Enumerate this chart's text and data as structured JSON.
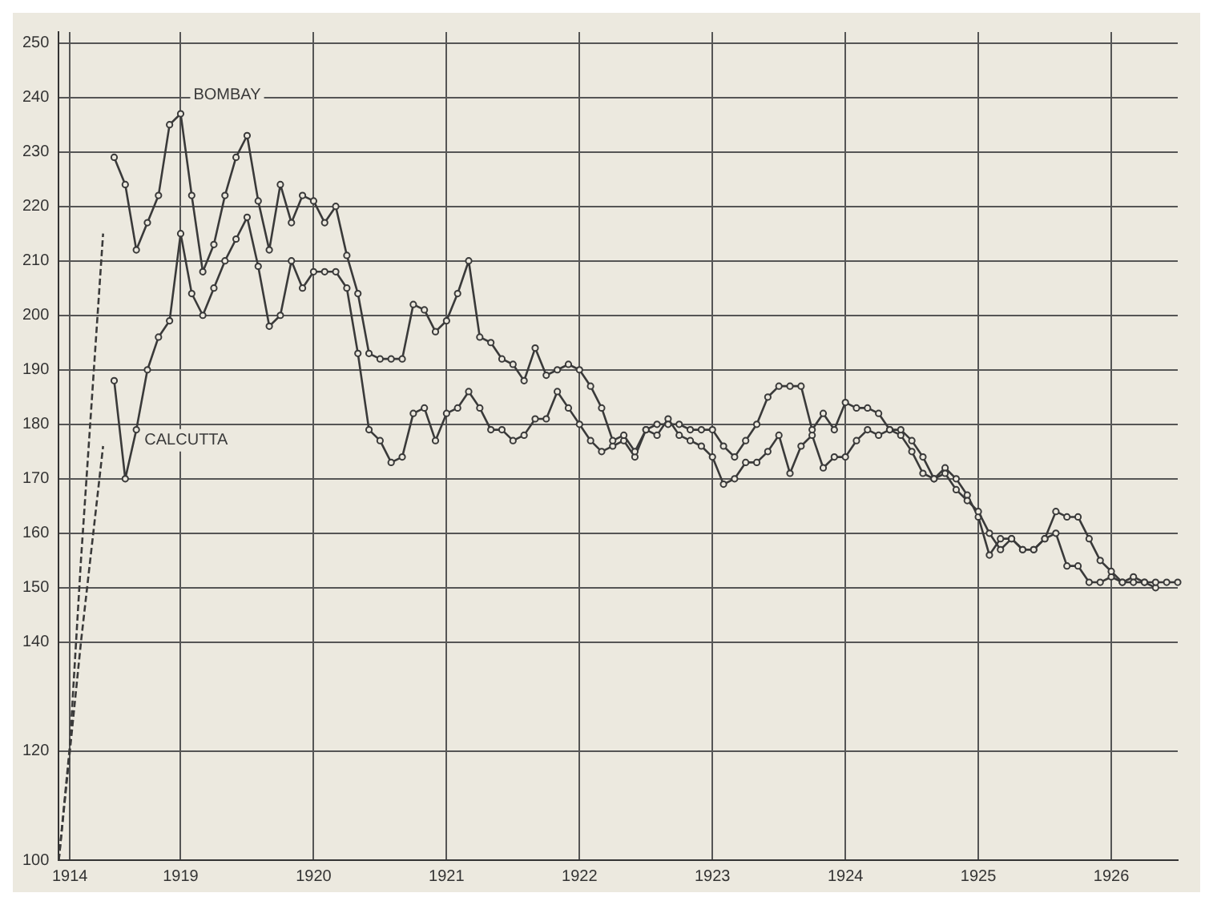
{
  "chart_data": {
    "type": "line",
    "categories": [
      null,
      "1914",
      null,
      null,
      null,
      null,
      null,
      null,
      null,
      null,
      null,
      "1919",
      null,
      null,
      null,
      null,
      null,
      null,
      null,
      null,
      null,
      null,
      null,
      "1920",
      null,
      null,
      null,
      null,
      null,
      null,
      null,
      null,
      null,
      null,
      null,
      "1921",
      null,
      null,
      null,
      null,
      null,
      null,
      null,
      null,
      null,
      null,
      null,
      "1922",
      null,
      null,
      null,
      null,
      null,
      null,
      null,
      null,
      null,
      null,
      null,
      "1923",
      null,
      null,
      null,
      null,
      null,
      null,
      null,
      null,
      null,
      null,
      null,
      "1924",
      null,
      null,
      null,
      null,
      null,
      null,
      null,
      null,
      null,
      null,
      null,
      "1925",
      null,
      null,
      null,
      null,
      null,
      null,
      null,
      null,
      null,
      null,
      null,
      "1926",
      null,
      null,
      null,
      null,
      null,
      null
    ],
    "series": [
      {
        "color": "#3a3a3a",
        "line_style": "dashed",
        "marker": "none",
        "values": [
          100,
          121,
          155,
          185,
          215,
          null,
          null,
          null,
          null,
          null,
          null,
          null,
          null,
          null,
          null,
          null,
          null,
          null,
          null,
          null,
          null,
          null,
          null,
          null,
          null,
          null,
          null,
          null,
          null,
          null,
          null,
          null,
          null,
          null,
          null,
          null,
          null,
          null,
          null,
          null,
          null,
          null,
          null,
          null,
          null,
          null,
          null,
          null,
          null,
          null,
          null,
          null,
          null,
          null,
          null,
          null,
          null,
          null,
          null,
          null,
          null,
          null,
          null,
          null,
          null,
          null,
          null,
          null,
          null,
          null,
          null,
          null,
          null,
          null,
          null,
          null,
          null,
          null,
          null,
          null,
          null,
          null,
          null,
          null,
          null,
          null,
          null,
          null,
          null,
          null,
          null,
          null,
          null,
          null,
          null,
          null,
          null,
          null,
          null,
          null,
          null,
          null
        ]
      },
      {
        "color": "#3a3a3a",
        "line_style": "dashed",
        "marker": "none",
        "values": [
          100,
          120,
          140,
          158,
          176,
          null,
          null,
          null,
          null,
          null,
          null,
          null,
          null,
          null,
          null,
          null,
          null,
          null,
          null,
          null,
          null,
          null,
          null,
          null,
          null,
          null,
          null,
          null,
          null,
          null,
          null,
          null,
          null,
          null,
          null,
          null,
          null,
          null,
          null,
          null,
          null,
          null,
          null,
          null,
          null,
          null,
          null,
          null,
          null,
          null,
          null,
          null,
          null,
          null,
          null,
          null,
          null,
          null,
          null,
          null,
          null,
          null,
          null,
          null,
          null,
          null,
          null,
          null,
          null,
          null,
          null,
          null,
          null,
          null,
          null,
          null,
          null,
          null,
          null,
          null,
          null,
          null,
          null,
          null,
          null,
          null,
          null,
          null,
          null,
          null,
          null,
          null,
          null,
          null,
          null,
          null,
          null,
          null,
          null,
          null,
          null,
          null
        ]
      },
      {
        "name": "BOMBAY",
        "color": "#3a3a3a",
        "line_style": "solid",
        "marker": "circle",
        "values": [
          null,
          null,
          null,
          null,
          null,
          229,
          224,
          212,
          217,
          222,
          235,
          237,
          222,
          208,
          213,
          222,
          229,
          233,
          221,
          212,
          224,
          217,
          222,
          221,
          217,
          220,
          211,
          204,
          193,
          192,
          192,
          192,
          202,
          201,
          197,
          199,
          204,
          210,
          196,
          195,
          192,
          191,
          188,
          194,
          189,
          190,
          191,
          190,
          187,
          183,
          177,
          178,
          175,
          179,
          180,
          180,
          180,
          179,
          179,
          179,
          176,
          174,
          177,
          180,
          185,
          187,
          187,
          187,
          179,
          182,
          179,
          184,
          183,
          183,
          182,
          179,
          179,
          177,
          174,
          170,
          171,
          168,
          166,
          164,
          160,
          157,
          159,
          157,
          157,
          159,
          164,
          163,
          163,
          159,
          155,
          153,
          151,
          151,
          151,
          151,
          151,
          151
        ]
      },
      {
        "name": "CALCUTTA",
        "color": "#3a3a3a",
        "line_style": "solid",
        "marker": "circle",
        "values": [
          null,
          null,
          null,
          null,
          null,
          188,
          170,
          179,
          190,
          196,
          199,
          215,
          204,
          200,
          205,
          210,
          214,
          218,
          209,
          198,
          200,
          210,
          205,
          208,
          208,
          208,
          205,
          193,
          179,
          177,
          173,
          174,
          182,
          183,
          177,
          182,
          183,
          186,
          183,
          179,
          179,
          177,
          178,
          181,
          181,
          186,
          183,
          180,
          177,
          175,
          176,
          177,
          174,
          179,
          178,
          181,
          178,
          177,
          176,
          174,
          169,
          170,
          173,
          173,
          175,
          178,
          171,
          176,
          178,
          172,
          174,
          174,
          177,
          179,
          178,
          179,
          178,
          175,
          171,
          170,
          172,
          170,
          167,
          163,
          156,
          159,
          159,
          157,
          157,
          159,
          160,
          154,
          154,
          151,
          151,
          152,
          151,
          152,
          151,
          150,
          null,
          null
        ]
      }
    ],
    "ylim": [
      100,
      252
    ],
    "yticks": [
      100,
      120,
      140,
      150,
      160,
      170,
      180,
      190,
      200,
      210,
      220,
      230,
      240,
      250
    ],
    "grid": true,
    "legend": false
  }
}
